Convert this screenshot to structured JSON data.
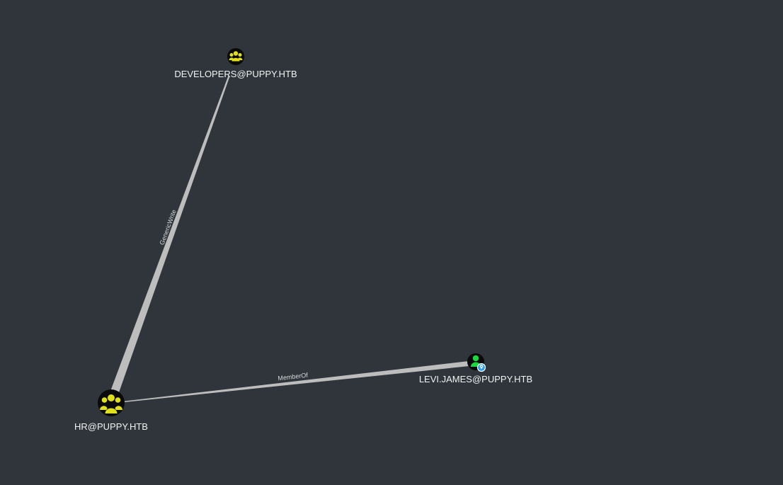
{
  "graph": {
    "background": "#2f353b",
    "nodes": [
      {
        "id": "developers",
        "label": "DEVELOPERS@PUPPY.HTB",
        "kind": "group",
        "icon": "group-icon",
        "icon_color": "#dfe01a"
      },
      {
        "id": "hr",
        "label": "HR@PUPPY.HTB",
        "kind": "group",
        "icon": "group-icon",
        "icon_color": "#dfe01a"
      },
      {
        "id": "levi",
        "label": "LEVI.JAMES@PUPPY.HTB",
        "kind": "user",
        "icon": "user-icon",
        "icon_color": "#19d93f",
        "badge_icon": "owned-marker-icon",
        "badge_color": "#2d9ef0"
      }
    ],
    "edges": [
      {
        "id": "genericwrite",
        "from": "hr",
        "to": "developers",
        "label": "GenericWrite"
      },
      {
        "id": "memberof",
        "from": "hr",
        "to": "levi",
        "label": "MemberOf"
      }
    ]
  }
}
